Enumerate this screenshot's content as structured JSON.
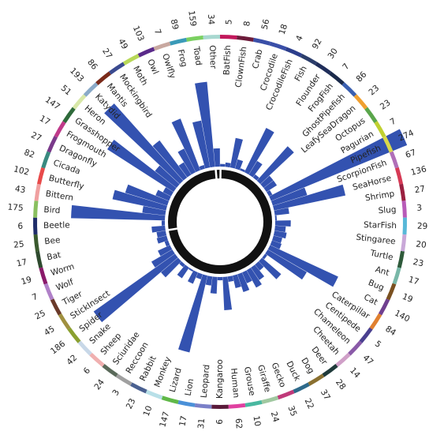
{
  "chart_data": {
    "type": "radial-bar",
    "title": "",
    "bar_color": "#3352b0",
    "inner_ring_color": "#111111",
    "categories": [
      {
        "label": "BatFish",
        "value": 5,
        "color": "#c2185b"
      },
      {
        "label": "ClownFish",
        "value": 8,
        "color": "#6d1b3a"
      },
      {
        "label": "Crab",
        "value": 56,
        "color": "#3a4fa8"
      },
      {
        "label": "Crocodile",
        "value": 18,
        "color": "#3a4fa8"
      },
      {
        "label": "CrocodileFish",
        "value": 4,
        "color": "#2c3e8c"
      },
      {
        "label": "Fish",
        "value": 92,
        "color": "#2c3e6b"
      },
      {
        "label": "Flounder",
        "value": 30,
        "color": "#1f2d5a"
      },
      {
        "label": "FrogFish",
        "value": 7,
        "color": "#1a2a4a"
      },
      {
        "label": "GhostPipefish",
        "value": 86,
        "color": "#3a5fb0"
      },
      {
        "label": "LeafySeaDragon",
        "value": 23,
        "color": "#f0a030"
      },
      {
        "label": "Octopus",
        "value": 23,
        "color": "#5aa64b"
      },
      {
        "label": "Pagurian",
        "value": 7,
        "color": "#c0d030"
      },
      {
        "label": "Pipefish",
        "value": 274,
        "color": "#d8d84a"
      },
      {
        "label": "ScorpionFish",
        "value": 67,
        "color": "#b06fb8"
      },
      {
        "label": "SeaHorse",
        "value": 136,
        "color": "#d63a55"
      },
      {
        "label": "Shrimp",
        "value": 27,
        "color": "#9a2040"
      },
      {
        "label": "Slug",
        "value": 3,
        "color": "#b85bb8"
      },
      {
        "label": "StarFish",
        "value": 29,
        "color": "#58b8d8"
      },
      {
        "label": "Stingaree",
        "value": 20,
        "color": "#c9a8d8"
      },
      {
        "label": "Turtle",
        "value": 23,
        "color": "#2e5a3a"
      },
      {
        "label": "Ant",
        "value": 17,
        "color": "#79b8a8"
      },
      {
        "label": "Bug",
        "value": 19,
        "color": "#7a5020"
      },
      {
        "label": "Cat",
        "value": 140,
        "color": "#704090"
      },
      {
        "label": "Caterpillar",
        "value": 84,
        "color": "#e08030"
      },
      {
        "label": "Centipede",
        "value": 5,
        "color": "#4a4090"
      },
      {
        "label": "Chameleon",
        "value": 47,
        "color": "#8a5aa8"
      },
      {
        "label": "Cheetah",
        "value": 14,
        "color": "#d0a0c8"
      },
      {
        "label": "Deer",
        "value": 28,
        "color": "#1f3a3a"
      },
      {
        "label": "Dog",
        "value": 37,
        "color": "#8a7030"
      },
      {
        "label": "Duck",
        "value": 22,
        "color": "#2e6a8a"
      },
      {
        "label": "Gecko",
        "value": 35,
        "color": "#c03a7a"
      },
      {
        "label": "Giraffe",
        "value": 24,
        "color": "#a0c8a0"
      },
      {
        "label": "Grouse",
        "value": 10,
        "color": "#48b8a0"
      },
      {
        "label": "Human",
        "value": 62,
        "color": "#e040a0"
      },
      {
        "label": "Kangaroo",
        "value": 6,
        "color": "#5a1a3a"
      },
      {
        "label": "Leopard",
        "value": 31,
        "color": "#7a80c8"
      },
      {
        "label": "Lion",
        "value": 17,
        "color": "#4a90d8"
      },
      {
        "label": "Lizard",
        "value": 147,
        "color": "#60b848"
      },
      {
        "label": "Monkey",
        "value": 10,
        "color": "#b8e0e8"
      },
      {
        "label": "Rabbit",
        "value": 23,
        "color": "#4a6090"
      },
      {
        "label": "Reccoon",
        "value": 3,
        "color": "#a0a0a0"
      },
      {
        "label": "Sciuridae",
        "value": 24,
        "color": "#5a6a5a"
      },
      {
        "label": "Sheep",
        "value": 6,
        "color": "#f0b0b0"
      },
      {
        "label": "Snake",
        "value": 42,
        "color": "#c8d8e8"
      },
      {
        "label": "Spider",
        "value": 186,
        "color": "#8aa030"
      },
      {
        "label": "StickInsect",
        "value": 45,
        "color": "#a09040"
      },
      {
        "label": "Tiger",
        "value": 25,
        "color": "#6a3a2a"
      },
      {
        "label": "Wolf",
        "value": 7,
        "color": "#b080c8"
      },
      {
        "label": "Worm",
        "value": 19,
        "color": "#8a1a6a"
      },
      {
        "label": "Bat",
        "value": 17,
        "color": "#2e4a2e"
      },
      {
        "label": "Bee",
        "value": 25,
        "color": "#3a5a2e"
      },
      {
        "label": "Beetle",
        "value": 6,
        "color": "#1f2d6a"
      },
      {
        "label": "Bird",
        "value": 175,
        "color": "#8ac060"
      },
      {
        "label": "Bittern",
        "value": 43,
        "color": "#f0a0a0"
      },
      {
        "label": "Butterfly",
        "value": 102,
        "color": "#e84a4a"
      },
      {
        "label": "Cicada",
        "value": 82,
        "color": "#3a8a80"
      },
      {
        "label": "Dragonfly",
        "value": 27,
        "color": "#7a3a8a"
      },
      {
        "label": "Frogmouth",
        "value": 17,
        "color": "#c03a8a"
      },
      {
        "label": "Grasshopper",
        "value": 147,
        "color": "#2e6a3a"
      },
      {
        "label": "Heron",
        "value": 51,
        "color": "#d8e8a8"
      },
      {
        "label": "Katydid",
        "value": 193,
        "color": "#8aaac8"
      },
      {
        "label": "Mantis",
        "value": 86,
        "color": "#7a2a1a"
      },
      {
        "label": "Mockingbird",
        "value": 27,
        "color": "#3a4a90"
      },
      {
        "label": "Moth",
        "value": 49,
        "color": "#b8d858"
      },
      {
        "label": "Owl",
        "value": 103,
        "color": "#5a2a8a"
      },
      {
        "label": "Owlfly",
        "value": 7,
        "color": "#c8a8a0"
      },
      {
        "label": "Frog",
        "value": 89,
        "color": "#3a9ab8"
      },
      {
        "label": "Toad",
        "value": 159,
        "color": "#7ad060"
      },
      {
        "label": "Other",
        "value": 34,
        "color": "#a8d8d0"
      }
    ]
  }
}
